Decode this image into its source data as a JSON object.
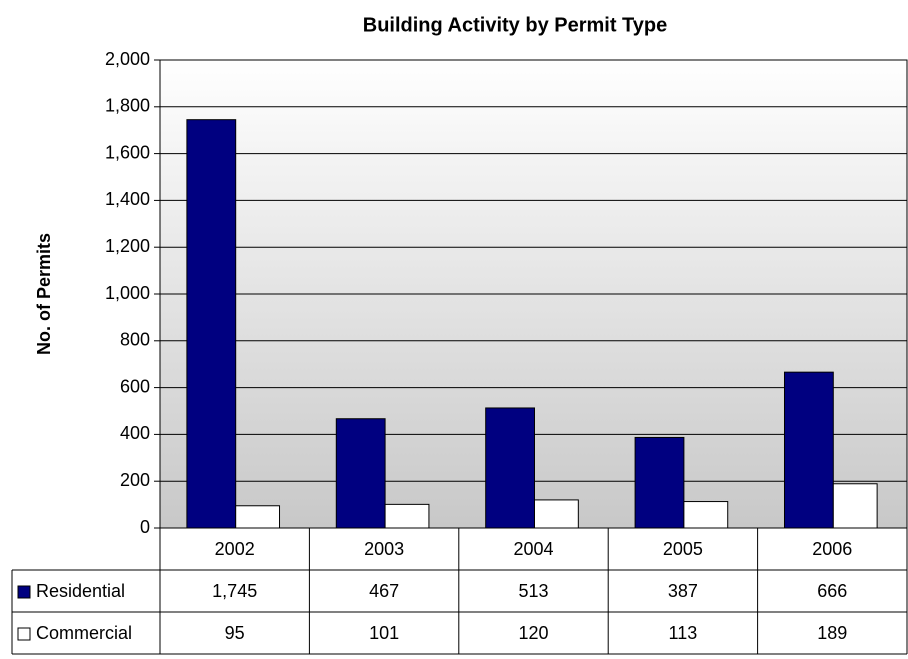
{
  "chart_data": {
    "type": "bar",
    "title": "Building Activity by Permit Type",
    "y_label": "No. of Permits",
    "categories": [
      "2002",
      "2003",
      "2004",
      "2005",
      "2006"
    ],
    "series": [
      {
        "name": "Residential",
        "color": "#000080",
        "values": [
          1745,
          467,
          513,
          387,
          666
        ],
        "value_labels": [
          "1,745",
          "467",
          "513",
          "387",
          "666"
        ]
      },
      {
        "name": "Commercial",
        "color": "#ffffff",
        "values": [
          95,
          101,
          120,
          113,
          189
        ],
        "value_labels": [
          "95",
          "101",
          "120",
          "113",
          "189"
        ]
      }
    ],
    "ylim": [
      0,
      2000
    ],
    "yticks": [
      0,
      200,
      400,
      600,
      800,
      {
        "value": 1000,
        "label": "1,000"
      },
      {
        "value": 1200,
        "label": "1,200"
      },
      {
        "value": 1400,
        "label": "1,400"
      },
      {
        "value": 1600,
        "label": "1,600"
      },
      {
        "value": 1800,
        "label": "1,800"
      },
      {
        "value": 2000,
        "label": "2,000"
      }
    ],
    "grid": true
  }
}
